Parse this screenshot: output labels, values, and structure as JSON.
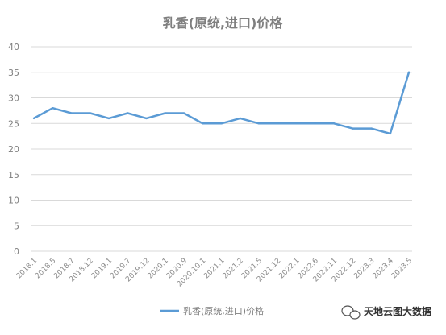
{
  "chart_data": {
    "type": "line",
    "title": "乳香(原统,进口)价格",
    "xlabel": "",
    "ylabel": "",
    "ylim": [
      0,
      40
    ],
    "yticks": [
      0,
      5,
      10,
      15,
      20,
      25,
      30,
      35,
      40
    ],
    "grid": "horizontal",
    "legend_position": "bottom",
    "categories": [
      "2018.1",
      "2018.5",
      "2018.7",
      "2018.12",
      "2019.1",
      "2019.7",
      "2019.12",
      "2020.1",
      "2020.9",
      "2020.10.1",
      "2021.1",
      "2021.2",
      "2021.5",
      "2021.12",
      "2022.1",
      "2022.6",
      "2022.11",
      "2022.12",
      "2023.3",
      "2023.4",
      "2023.5"
    ],
    "series": [
      {
        "name": "乳香(原统,进口)价格",
        "color": "#5b9bd5",
        "values": [
          26,
          28,
          27,
          27,
          26,
          27,
          26,
          27,
          27,
          25,
          25,
          26,
          25,
          25,
          25,
          25,
          25,
          24,
          24,
          23,
          35
        ]
      }
    ]
  },
  "watermark": {
    "text": "天地云图大数据",
    "icon": "wechat-icon"
  }
}
